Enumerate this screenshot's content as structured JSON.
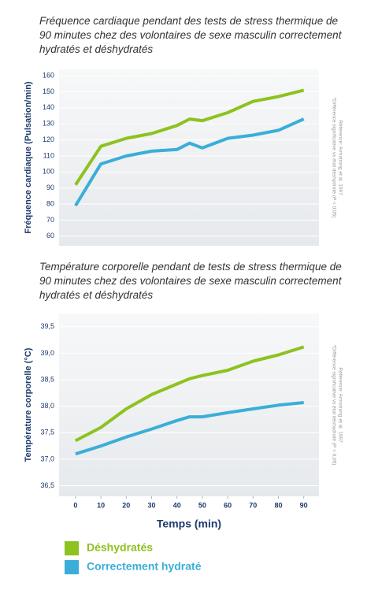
{
  "chart_data": [
    {
      "type": "line",
      "title": "Fréquence cardiaque pendant des tests de stress thermique de 90 minutes chez des volontaires de sexe masculin correctement hydratés et déshydratés",
      "ylabel": "Fréquence cardiaque (Pulsation/min)",
      "note": "*Différence significative vs état déshydraté (P < 0,05)",
      "source": "Référence: Armstrong et al. 1997",
      "x": [
        0,
        10,
        20,
        30,
        40,
        45,
        50,
        60,
        70,
        80,
        90
      ],
      "xlim": [
        -6.5,
        96
      ],
      "ylim": [
        54,
        164
      ],
      "yticks": [
        60,
        70,
        80,
        90,
        100,
        110,
        120,
        130,
        140,
        150,
        160
      ],
      "series": [
        {
          "color": "#8dc21f",
          "values": [
            92,
            116,
            121,
            124,
            129,
            133,
            132,
            137,
            144,
            147,
            151
          ]
        },
        {
          "color": "#3aaed8",
          "values": [
            79,
            105,
            110,
            113,
            114,
            118,
            115,
            121,
            123,
            126,
            133
          ]
        }
      ]
    },
    {
      "type": "line",
      "title": "Température corporelle pendant de tests de stress thermique de 90 minutes chez des volontaires de sexe masculin correctement hydratés et déshydratés",
      "ylabel": "Température corporelle (°C)",
      "xlabel": "Temps (min)",
      "note": "*Différence significative vs état déshydraté (P < 0,05)",
      "source": "Référence: Armstrong et al. 1997",
      "x": [
        0,
        10,
        20,
        30,
        40,
        45,
        50,
        60,
        70,
        80,
        90
      ],
      "xlim": [
        -6.5,
        96
      ],
      "xticks": [
        0,
        10,
        20,
        30,
        40,
        50,
        60,
        70,
        80,
        90
      ],
      "ylim": [
        36.3,
        39.75
      ],
      "yticks": [
        {
          "value": 36.5,
          "label": "36,5"
        },
        {
          "value": 37,
          "label": "37,0"
        },
        {
          "value": 37.5,
          "label": "37,5"
        },
        {
          "value": 38,
          "label": "38,0"
        },
        {
          "value": 38.5,
          "label": "38,5"
        },
        {
          "value": 39,
          "label": "39,0"
        },
        {
          "value": 39.5,
          "label": "39,5"
        }
      ],
      "series": [
        {
          "name": "Déshydratés",
          "color": "#8dc21f",
          "values": [
            37.35,
            37.6,
            37.95,
            38.22,
            38.42,
            38.52,
            38.58,
            38.68,
            38.85,
            38.97,
            39.12
          ]
        },
        {
          "name": "Correctement hydraté",
          "color": "#3aaed8",
          "values": [
            37.1,
            37.25,
            37.42,
            37.57,
            37.73,
            37.8,
            37.8,
            37.88,
            37.95,
            38.02,
            38.07
          ]
        }
      ]
    }
  ]
}
